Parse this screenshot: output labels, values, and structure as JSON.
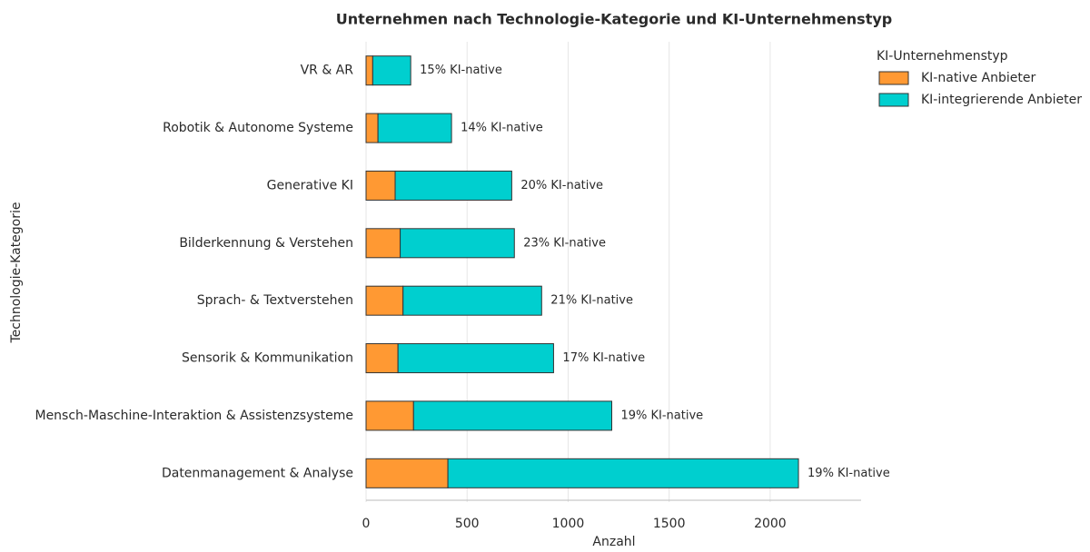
{
  "chart_data": {
    "type": "stacked_bar_horizontal",
    "title": "Unternehmen nach Technologie-Kategorie und KI-Unternehmenstyp",
    "x_label": "Anzahl",
    "y_label": "Technologie-Kategorie",
    "categories": [
      "VR & AR",
      "Robotik & Autonome Systeme",
      "Generative KI",
      "Bilderkennung & Verstehen",
      "Sprach- & Textverstehen",
      "Sensorik & Kommunikation",
      "Mensch-Maschine-Interaktion & Assistenzsysteme",
      "Datenmanagement & Analyse"
    ],
    "series": [
      {
        "name": "KI-native Anbieter",
        "color": "#ff9933",
        "values": [
          33,
          59,
          144,
          169,
          183,
          158,
          235,
          405
        ]
      },
      {
        "name": "KI-integrierende Anbieter",
        "color": "#00cfcf",
        "values": [
          188,
          364,
          577,
          565,
          686,
          770,
          981,
          1735
        ]
      }
    ],
    "annotations": [
      "15% KI-native",
      "14% KI-native",
      "20% KI-native",
      "23% KI-native",
      "21% KI-native",
      "17% KI-native",
      "19% KI-native",
      "19% KI-native"
    ],
    "legend_title": "KI-Unternehmenstyp",
    "legend_position": "top-right",
    "xlim": [
      0,
      2450
    ],
    "xticks": [
      0,
      500,
      1000,
      1500,
      2000
    ],
    "grid": true
  }
}
